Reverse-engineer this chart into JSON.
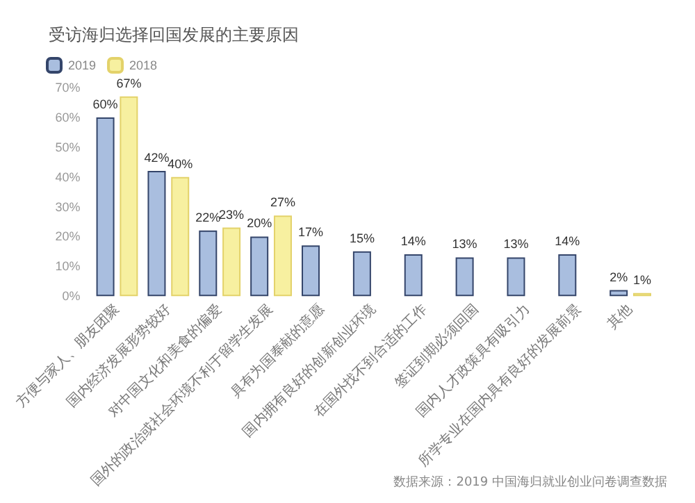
{
  "chart_data": {
    "type": "bar",
    "title": "受访海归选择回国发展的主要原因",
    "categories": [
      "方便与家人、朋友团聚",
      "国内经济发展形势较好",
      "对中国文化和美食的偏爱",
      "国外的政治或社会环境不利于留学生发展",
      "具有为国奉献的意愿",
      "国内拥有良好的创新创业环境",
      "在国外找不到合适的工作",
      "签证到期必须回国",
      "国内人才政策具有吸引力",
      "所学专业在国内具有良好的发展前景",
      "其他"
    ],
    "series": [
      {
        "name": "2019",
        "color": "#a9bedf",
        "values": [
          60,
          42,
          22,
          20,
          17,
          15,
          14,
          13,
          13,
          14,
          2
        ],
        "value_labels": [
          "60%",
          "42%",
          "22%",
          "20%",
          "17%",
          "15%",
          "14%",
          "13%",
          "13%",
          "14%",
          "2%"
        ]
      },
      {
        "name": "2018",
        "color": "#f7f0a0",
        "values": [
          67,
          40,
          23,
          27,
          null,
          null,
          null,
          null,
          null,
          null,
          1
        ],
        "value_labels": [
          "67%",
          "40%",
          "23%",
          "27%",
          null,
          null,
          null,
          null,
          null,
          null,
          "1%"
        ]
      }
    ],
    "ylim": [
      0,
      70
    ],
    "yticks": [
      {
        "value": 0,
        "label": "0%"
      },
      {
        "value": 10,
        "label": "10%"
      },
      {
        "value": 20,
        "label": "20%"
      },
      {
        "value": 30,
        "label": "30%"
      },
      {
        "value": 40,
        "label": "40%"
      },
      {
        "value": 50,
        "label": "50%"
      },
      {
        "value": 60,
        "label": "60%"
      },
      {
        "value": 70,
        "label": "70%"
      }
    ],
    "legend": "top left",
    "grid": false,
    "annotations": [
      "数据来源：2019 中国海归就业创业问卷调查数据"
    ]
  }
}
